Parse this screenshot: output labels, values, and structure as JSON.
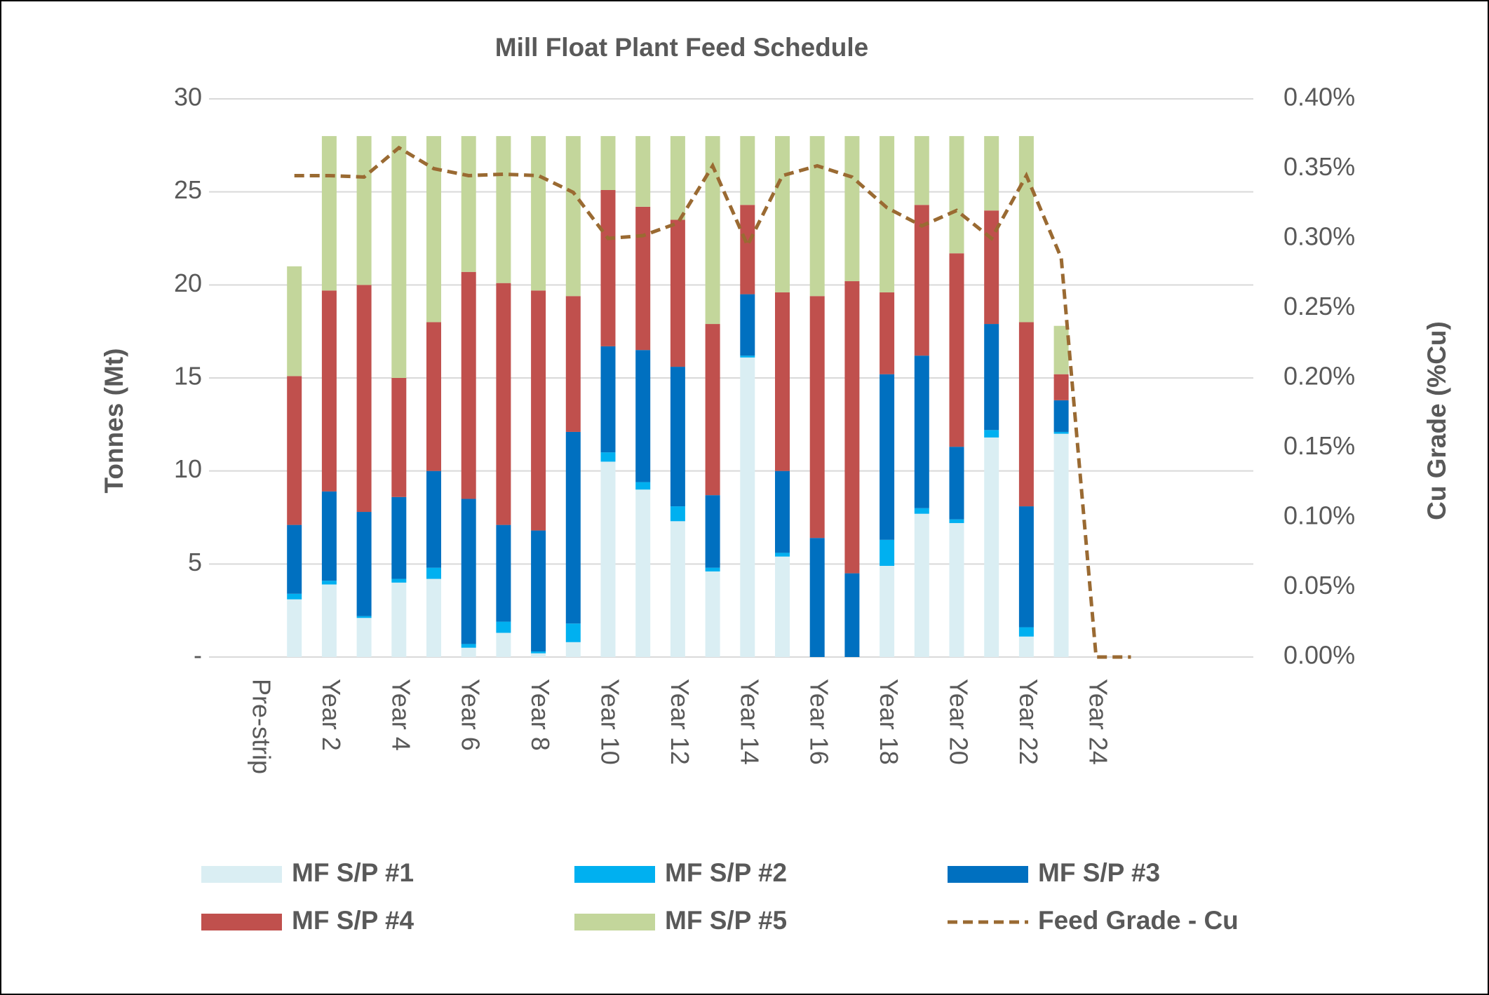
{
  "chart_data": {
    "type": "bar",
    "stacked": true,
    "title": "Mill Float Plant Feed Schedule",
    "y_label": "Tonnes (Mt)",
    "y2_label": "Cu Grade (%Cu)",
    "categories": [
      "Pre-strip",
      null,
      "Year 2",
      null,
      "Year 4",
      null,
      "Year 6",
      null,
      "Year 8",
      null,
      "Year 10",
      null,
      "Year 12",
      null,
      "Year 14",
      null,
      "Year 16",
      null,
      "Year 18",
      null,
      "Year 20",
      null,
      "Year 22",
      null,
      "Year 24",
      null
    ],
    "ylim": [
      0,
      30
    ],
    "yticks": [
      {
        "value": 0,
        "label": "-"
      },
      5,
      10,
      15,
      20,
      25,
      30
    ],
    "y2lim": [
      0,
      0.4
    ],
    "y2ticks": [
      {
        "value": 0,
        "label": "0.00%"
      },
      {
        "value": 0.05,
        "label": "0.05%"
      },
      {
        "value": 0.1,
        "label": "0.10%"
      },
      {
        "value": 0.15,
        "label": "0.15%"
      },
      {
        "value": 0.2,
        "label": "0.20%"
      },
      {
        "value": 0.25,
        "label": "0.25%"
      },
      {
        "value": 0.3,
        "label": "0.30%"
      },
      {
        "value": 0.35,
        "label": "0.35%"
      },
      {
        "value": 0.4,
        "label": "0.40%"
      }
    ],
    "grid": true,
    "legend": "bottom",
    "series": [
      {
        "name": "MF S/P #1",
        "color": "#daeef3",
        "values": [
          null,
          3.1,
          3.9,
          2.1,
          4.0,
          4.2,
          0.5,
          1.3,
          0.2,
          0.8,
          10.5,
          9.0,
          7.3,
          4.6,
          16.1,
          5.4,
          0,
          0,
          4.9,
          7.7,
          7.2,
          11.8,
          1.1,
          12.0,
          null,
          null
        ]
      },
      {
        "name": "MF S/P #2",
        "color": "#00b0f0",
        "values": [
          null,
          0.3,
          0.2,
          0.1,
          0.2,
          0.6,
          0.2,
          0.6,
          0.1,
          1.0,
          0.5,
          0.4,
          0.8,
          0.2,
          0.1,
          0.2,
          0,
          0,
          1.4,
          0.3,
          0.2,
          0.4,
          0.5,
          0.1,
          null,
          null
        ]
      },
      {
        "name": "MF S/P #3",
        "color": "#0070c0",
        "values": [
          null,
          3.7,
          4.8,
          5.6,
          4.4,
          5.2,
          7.8,
          5.2,
          6.5,
          10.3,
          5.7,
          7.1,
          7.5,
          3.9,
          3.3,
          4.4,
          6.4,
          4.5,
          8.9,
          8.2,
          3.9,
          5.7,
          6.5,
          1.7,
          null,
          null
        ]
      },
      {
        "name": "MF S/P #4",
        "color": "#c0504d",
        "values": [
          null,
          8.0,
          10.8,
          12.2,
          6.4,
          8.0,
          12.2,
          13.0,
          12.9,
          7.3,
          8.4,
          7.7,
          7.9,
          9.2,
          4.8,
          9.6,
          13.0,
          15.7,
          4.4,
          8.1,
          10.4,
          6.1,
          9.9,
          1.4,
          null,
          null
        ]
      },
      {
        "name": "MF S/P #5",
        "color": "#c3d69b",
        "values": [
          null,
          5.9,
          8.3,
          8.0,
          13.0,
          10.0,
          7.3,
          7.9,
          8.3,
          8.6,
          2.9,
          3.8,
          4.5,
          10.1,
          3.7,
          8.4,
          8.6,
          7.8,
          8.4,
          3.7,
          6.3,
          4.0,
          10.0,
          2.6,
          null,
          null
        ]
      },
      {
        "name": "Feed Grade - Cu",
        "color": "#9a6a32",
        "type": "line",
        "dashed": true,
        "axis": "y2",
        "values": [
          null,
          0.345,
          0.345,
          0.344,
          0.365,
          0.35,
          0.345,
          0.346,
          0.345,
          0.333,
          0.3,
          0.302,
          0.311,
          0.352,
          0.295,
          0.345,
          0.352,
          0.344,
          0.322,
          0.309,
          0.32,
          0.3,
          0.345,
          0.286,
          0,
          0
        ]
      }
    ]
  }
}
